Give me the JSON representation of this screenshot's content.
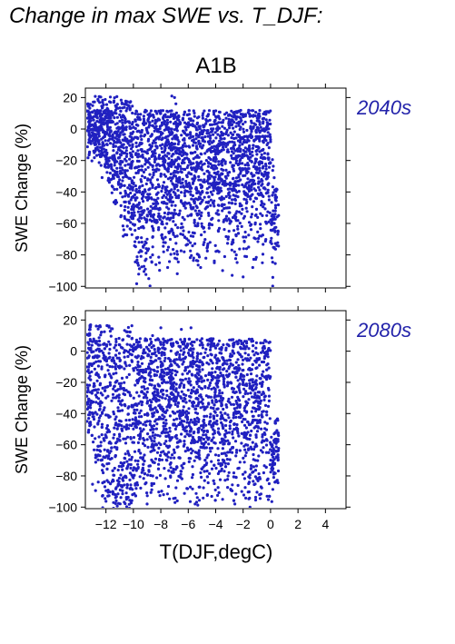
{
  "title": "Change in max SWE vs. T_DJF:",
  "chart_data": {
    "type": "scatter",
    "title": "A1B",
    "xlabel": "T(DJF,degC)",
    "ylabel": "SWE Change (%)",
    "xlim": [
      -13.5,
      5.5
    ],
    "ylim": [
      -101,
      26
    ],
    "xticks": [
      -12,
      -10,
      -8,
      -6,
      -4,
      -2,
      0,
      2,
      4
    ],
    "xtick_labels": [
      "−12",
      "−10",
      "−8",
      "−6",
      "−4",
      "−2",
      "0",
      "2",
      "4"
    ],
    "yticks": [
      20,
      0,
      -20,
      -40,
      -60,
      -80,
      -100
    ],
    "ytick_labels": [
      "20",
      "0",
      "−20",
      "−40",
      "−60",
      "−80",
      "−100"
    ],
    "grid": false,
    "marker_color": "#2020c0",
    "label_color": "#2222aa",
    "panels": [
      {
        "name": "2040s",
        "points": [
          [
            -13.2,
            7
          ],
          [
            -13.0,
            -4
          ],
          [
            -12.9,
            2
          ],
          [
            -12.7,
            -6
          ],
          [
            -12.5,
            10
          ],
          [
            -12.4,
            5
          ],
          [
            -12.2,
            -2
          ],
          [
            -12.0,
            12
          ],
          [
            -11.9,
            -10
          ],
          [
            -11.7,
            8
          ],
          [
            -11.5,
            -18
          ],
          [
            -11.3,
            3
          ],
          [
            -11.2,
            -25
          ],
          [
            -11.0,
            9
          ],
          [
            -10.9,
            -35
          ],
          [
            -10.7,
            -12
          ],
          [
            -10.6,
            4
          ],
          [
            -10.4,
            -42
          ],
          [
            -10.2,
            -8
          ],
          [
            -10.1,
            -55
          ],
          [
            -10.0,
            1
          ],
          [
            -9.8,
            -28
          ],
          [
            -9.6,
            -48
          ],
          [
            -9.5,
            6
          ],
          [
            -9.3,
            -62
          ],
          [
            -9.1,
            -20
          ],
          [
            -9.0,
            -70
          ],
          [
            -8.8,
            -38
          ],
          [
            -8.6,
            -80
          ],
          [
            -8.5,
            -15
          ],
          [
            -8.3,
            -58
          ],
          [
            -8.1,
            -85
          ],
          [
            -8.0,
            -30
          ],
          [
            -7.8,
            -72
          ],
          [
            -7.6,
            -5
          ],
          [
            -7.5,
            -88
          ],
          [
            -7.3,
            -45
          ],
          [
            -7.1,
            -66
          ],
          [
            -7.0,
            20
          ],
          [
            -6.8,
            -92
          ],
          [
            -6.6,
            -52
          ],
          [
            -6.5,
            -12
          ],
          [
            -6.3,
            -78
          ],
          [
            -6.1,
            -35
          ],
          [
            -6.0,
            2
          ],
          [
            -5.8,
            -68
          ],
          [
            -5.6,
            -82
          ],
          [
            -5.5,
            -25
          ],
          [
            -5.3,
            -60
          ],
          [
            -5.1,
            -88
          ],
          [
            -5.0,
            -40
          ],
          [
            -4.8,
            -8
          ],
          [
            -4.6,
            -75
          ],
          [
            -4.5,
            -55
          ],
          [
            -4.3,
            -30
          ],
          [
            -4.1,
            -85
          ],
          [
            -4.0,
            -18
          ],
          [
            -3.8,
            -65
          ],
          [
            -3.6,
            -45
          ],
          [
            -3.5,
            -90
          ],
          [
            -3.3,
            -22
          ],
          [
            -3.1,
            -70
          ],
          [
            -3.0,
            -50
          ],
          [
            -2.8,
            -93
          ],
          [
            -2.6,
            -35
          ],
          [
            -2.5,
            -80
          ],
          [
            -2.3,
            -12
          ],
          [
            -2.1,
            -62
          ],
          [
            -2.0,
            -94
          ],
          [
            -1.8,
            -42
          ],
          [
            -1.6,
            -75
          ],
          [
            -1.5,
            -20
          ],
          [
            -1.3,
            -88
          ],
          [
            -1.1,
            -55
          ],
          [
            -1.0,
            -5
          ],
          [
            -0.8,
            -68
          ],
          [
            -0.6,
            -85
          ],
          [
            -0.5,
            -30
          ],
          [
            -0.3,
            -60
          ],
          [
            -0.1,
            -45
          ],
          [
            0.0,
            -72
          ],
          [
            0.2,
            -52
          ],
          [
            -7.2,
            21
          ],
          [
            -6.9,
            16
          ]
        ]
      },
      {
        "name": "2080s",
        "points": [
          [
            -13.3,
            -25
          ],
          [
            -13.1,
            2
          ],
          [
            -12.9,
            -40
          ],
          [
            -12.7,
            5
          ],
          [
            -12.5,
            -55
          ],
          [
            -12.3,
            -10
          ],
          [
            -12.2,
            -78
          ],
          [
            -12.0,
            -30
          ],
          [
            -11.8,
            6
          ],
          [
            -11.6,
            -62
          ],
          [
            -11.5,
            -90
          ],
          [
            -11.3,
            -20
          ],
          [
            -11.1,
            -48
          ],
          [
            -11.0,
            4
          ],
          [
            -10.8,
            -82
          ],
          [
            -10.6,
            -35
          ],
          [
            -10.5,
            -95
          ],
          [
            -10.3,
            -15
          ],
          [
            -10.1,
            -68
          ],
          [
            -10.0,
            2
          ],
          [
            -9.8,
            -88
          ],
          [
            -9.6,
            -45
          ],
          [
            -9.5,
            8
          ],
          [
            -9.3,
            -75
          ],
          [
            -9.1,
            -28
          ],
          [
            -9.0,
            -98
          ],
          [
            -8.8,
            -55
          ],
          [
            -8.6,
            10
          ],
          [
            -8.5,
            -85
          ],
          [
            -8.3,
            -38
          ],
          [
            -8.1,
            -70
          ],
          [
            -8.0,
            15
          ],
          [
            -7.8,
            -92
          ],
          [
            -7.6,
            -50
          ],
          [
            -7.5,
            -20
          ],
          [
            -7.3,
            -80
          ],
          [
            -7.1,
            5
          ],
          [
            -7.0,
            -65
          ],
          [
            -6.8,
            -96
          ],
          [
            -6.6,
            -40
          ],
          [
            -6.5,
            14
          ],
          [
            -6.3,
            -72
          ],
          [
            -6.1,
            -88
          ],
          [
            -6.0,
            -25
          ],
          [
            -5.8,
            15
          ],
          [
            -5.6,
            -58
          ],
          [
            -5.5,
            -98
          ],
          [
            -5.3,
            -35
          ],
          [
            -5.1,
            -78
          ],
          [
            -5.0,
            8
          ],
          [
            -4.8,
            -62
          ],
          [
            -4.6,
            -92
          ],
          [
            -4.5,
            -15
          ],
          [
            -4.3,
            -48
          ],
          [
            -4.1,
            -85
          ],
          [
            -4.0,
            2
          ],
          [
            -3.8,
            -70
          ],
          [
            -3.6,
            -30
          ],
          [
            -3.5,
            -95
          ],
          [
            -3.3,
            -55
          ],
          [
            -3.1,
            -80
          ],
          [
            -3.0,
            -10
          ],
          [
            -2.8,
            -65
          ],
          [
            -2.6,
            -98
          ],
          [
            -2.5,
            -40
          ],
          [
            -2.3,
            -75
          ],
          [
            -2.1,
            -90
          ],
          [
            -2.0,
            -20
          ],
          [
            -1.8,
            -60
          ],
          [
            -1.6,
            -85
          ],
          [
            -1.5,
            -100
          ],
          [
            -1.3,
            -45
          ],
          [
            -1.1,
            -70
          ],
          [
            -1.0,
            -30
          ],
          [
            -0.8,
            -92
          ],
          [
            -0.6,
            -55
          ],
          [
            -0.5,
            -78
          ],
          [
            -0.3,
            -65
          ],
          [
            -0.1,
            -85
          ],
          [
            0.1,
            -60
          ],
          [
            0.3,
            -72
          ],
          [
            0.5,
            -58
          ]
        ]
      }
    ]
  }
}
